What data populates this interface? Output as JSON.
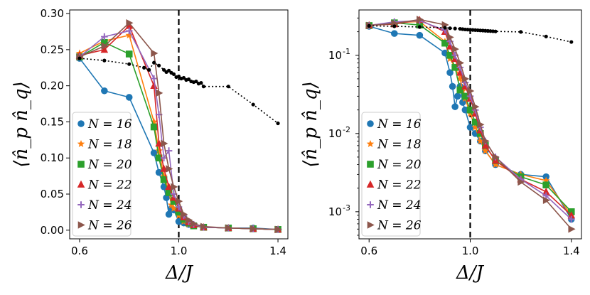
{
  "chart_data": [
    {
      "type": "line",
      "title": "",
      "xlabel": "Δ/J",
      "ylabel": "⟨n̂_p n̂_q⟩",
      "yscale": "linear",
      "xlim": [
        0.56,
        1.44
      ],
      "ylim": [
        -0.012,
        0.305
      ],
      "xticks": [
        0.6,
        1.0,
        1.4
      ],
      "xtick_labels": [
        "0.6",
        "1.0",
        "1.4"
      ],
      "yticks": [
        0.0,
        0.05,
        0.1,
        0.15,
        0.2,
        0.25,
        0.3
      ],
      "ytick_labels": [
        "0.00",
        "0.05",
        "0.10",
        "0.15",
        "0.20",
        "0.25",
        "0.30"
      ],
      "vline": 1.0,
      "legend": {
        "placement": "lower-left",
        "entries": [
          "N = 16",
          "N = 18",
          "N = 20",
          "N = 22",
          "N = 24",
          "N = 26"
        ]
      },
      "series": [
        {
          "name": "N = 16",
          "color": "#1f77b4",
          "marker": "circle",
          "x": [
            0.6,
            0.7,
            0.8,
            0.9,
            0.92,
            0.94,
            0.95,
            0.96,
            0.97,
            0.98,
            1.0,
            1.02,
            1.04,
            1.06,
            1.1,
            1.2,
            1.3,
            1.4
          ],
          "y": [
            0.238,
            0.193,
            0.184,
            0.107,
            0.08,
            0.06,
            0.045,
            0.022,
            0.03,
            0.028,
            0.012,
            0.01,
            0.008,
            0.006,
            0.004,
            0.003,
            0.003,
            0.001
          ]
        },
        {
          "name": "N = 18",
          "color": "#ff7f0e",
          "marker": "star",
          "x": [
            0.6,
            0.7,
            0.8,
            0.9,
            0.92,
            0.94,
            0.96,
            0.97,
            0.98,
            1.0,
            1.02,
            1.04,
            1.06,
            1.1,
            1.2,
            1.3,
            1.4
          ],
          "y": [
            0.245,
            0.262,
            0.27,
            0.15,
            0.11,
            0.075,
            0.055,
            0.035,
            0.03,
            0.02,
            0.012,
            0.008,
            0.006,
            0.004,
            0.003,
            0.002,
            0.001
          ]
        },
        {
          "name": "N = 20",
          "color": "#2ca02c",
          "marker": "square",
          "x": [
            0.6,
            0.7,
            0.8,
            0.9,
            0.92,
            0.94,
            0.96,
            0.98,
            1.0,
            1.02,
            1.04,
            1.06,
            1.1,
            1.2,
            1.3,
            1.4
          ],
          "y": [
            0.24,
            0.26,
            0.244,
            0.143,
            0.1,
            0.07,
            0.052,
            0.04,
            0.025,
            0.015,
            0.01,
            0.006,
            0.004,
            0.003,
            0.002,
            0.001
          ]
        },
        {
          "name": "N = 22",
          "color": "#d62728",
          "marker": "triangle-up",
          "x": [
            0.6,
            0.7,
            0.8,
            0.9,
            0.92,
            0.94,
            0.96,
            0.98,
            1.0,
            1.02,
            1.04,
            1.06,
            1.1,
            1.2,
            1.3,
            1.4
          ],
          "y": [
            0.242,
            0.25,
            0.283,
            0.2,
            0.12,
            0.085,
            0.06,
            0.045,
            0.03,
            0.018,
            0.011,
            0.007,
            0.004,
            0.003,
            0.002,
            0.001
          ]
        },
        {
          "name": "N = 24",
          "color": "#9467bd",
          "marker": "plus",
          "x": [
            0.6,
            0.7,
            0.8,
            0.9,
            0.92,
            0.94,
            0.96,
            0.98,
            1.0,
            1.02,
            1.04,
            1.06,
            1.1,
            1.2,
            1.3,
            1.4
          ],
          "y": [
            0.24,
            0.268,
            0.276,
            0.21,
            0.16,
            0.1,
            0.11,
            0.05,
            0.032,
            0.02,
            0.012,
            0.008,
            0.004,
            0.003,
            0.002,
            0.001
          ]
        },
        {
          "name": "N = 26",
          "color": "#8c564b",
          "marker": "triangle-right",
          "x": [
            0.6,
            0.7,
            0.8,
            0.9,
            0.92,
            0.94,
            0.96,
            0.98,
            1.0,
            1.02,
            1.04,
            1.06,
            1.1,
            1.2,
            1.3,
            1.4
          ],
          "y": [
            0.24,
            0.255,
            0.287,
            0.245,
            0.19,
            0.12,
            0.085,
            0.06,
            0.04,
            0.022,
            0.014,
            0.009,
            0.005,
            0.003,
            0.002,
            0.001
          ]
        },
        {
          "name": "reference",
          "color": "#000000",
          "marker": "dot",
          "dotted": true,
          "x": [
            0.6,
            0.7,
            0.8,
            0.86,
            0.88,
            0.9,
            0.92,
            0.94,
            0.95,
            0.96,
            0.97,
            0.98,
            0.99,
            1.0,
            1.01,
            1.02,
            1.03,
            1.04,
            1.05,
            1.06,
            1.07,
            1.08,
            1.09,
            1.1,
            1.2,
            1.3,
            1.4
          ],
          "y": [
            0.238,
            0.235,
            0.23,
            0.225,
            0.222,
            0.232,
            0.228,
            0.222,
            0.219,
            0.221,
            0.218,
            0.216,
            0.212,
            0.213,
            0.21,
            0.211,
            0.208,
            0.209,
            0.206,
            0.205,
            0.206,
            0.203,
            0.204,
            0.199,
            0.199,
            0.174,
            0.148
          ]
        }
      ]
    },
    {
      "type": "line",
      "title": "",
      "xlabel": "Δ/J",
      "ylabel": "⟨n̂_p n̂_q⟩",
      "yscale": "log",
      "xlim": [
        0.56,
        1.44
      ],
      "ylim": [
        0.00045,
        0.38
      ],
      "xticks": [
        0.6,
        1.0,
        1.4
      ],
      "xtick_labels": [
        "0.6",
        "1.0",
        "1.4"
      ],
      "yticks": [
        0.001,
        0.01,
        0.1
      ],
      "ytick_labels": [
        "10",
        "10",
        "10"
      ],
      "ytick_exponents": [
        "-3",
        "-2",
        "-1"
      ],
      "vline": 1.0,
      "legend": {
        "placement": "lower-left",
        "entries": [
          "N = 16",
          "N = 18",
          "N = 20",
          "N = 22",
          "N = 24",
          "N = 26"
        ]
      },
      "series": [
        {
          "name": "N = 16",
          "color": "#1f77b4",
          "marker": "circle",
          "x": [
            0.6,
            0.7,
            0.8,
            0.9,
            0.92,
            0.93,
            0.94,
            0.95,
            0.96,
            0.97,
            0.98,
            1.0,
            1.02,
            1.04,
            1.06,
            1.1,
            1.2,
            1.3,
            1.4
          ],
          "y": [
            0.235,
            0.19,
            0.18,
            0.107,
            0.06,
            0.04,
            0.022,
            0.03,
            0.04,
            0.025,
            0.02,
            0.012,
            0.01,
            0.008,
            0.006,
            0.004,
            0.003,
            0.0028,
            0.0008
          ]
        },
        {
          "name": "N = 18",
          "color": "#ff7f0e",
          "marker": "star",
          "x": [
            0.6,
            0.7,
            0.8,
            0.9,
            0.92,
            0.94,
            0.96,
            0.97,
            0.98,
            1.0,
            1.02,
            1.04,
            1.06,
            1.1,
            1.2,
            1.3,
            1.4
          ],
          "y": [
            0.243,
            0.262,
            0.27,
            0.15,
            0.09,
            0.07,
            0.05,
            0.035,
            0.028,
            0.018,
            0.012,
            0.008,
            0.006,
            0.004,
            0.003,
            0.0025,
            0.0009
          ]
        },
        {
          "name": "N = 20",
          "color": "#2ca02c",
          "marker": "square",
          "x": [
            0.6,
            0.7,
            0.8,
            0.9,
            0.92,
            0.94,
            0.96,
            0.98,
            1.0,
            1.02,
            1.04,
            1.06,
            1.1,
            1.2,
            1.3,
            1.4
          ],
          "y": [
            0.24,
            0.26,
            0.244,
            0.143,
            0.1,
            0.07,
            0.036,
            0.03,
            0.02,
            0.014,
            0.01,
            0.007,
            0.0045,
            0.0028,
            0.0022,
            0.001
          ]
        },
        {
          "name": "N = 22",
          "color": "#d62728",
          "marker": "triangle-up",
          "x": [
            0.6,
            0.7,
            0.8,
            0.9,
            0.92,
            0.94,
            0.96,
            0.98,
            1.0,
            1.02,
            1.04,
            1.06,
            1.1,
            1.2,
            1.3,
            1.4
          ],
          "y": [
            0.242,
            0.25,
            0.283,
            0.2,
            0.13,
            0.09,
            0.06,
            0.04,
            0.028,
            0.018,
            0.011,
            0.007,
            0.0045,
            0.0026,
            0.0018,
            0.0009
          ]
        },
        {
          "name": "N = 24",
          "color": "#9467bd",
          "marker": "plus",
          "x": [
            0.6,
            0.7,
            0.8,
            0.9,
            0.92,
            0.94,
            0.96,
            0.98,
            1.0,
            1.02,
            1.04,
            1.06,
            1.1,
            1.2,
            1.3,
            1.4
          ],
          "y": [
            0.24,
            0.268,
            0.276,
            0.21,
            0.15,
            0.1,
            0.07,
            0.045,
            0.03,
            0.02,
            0.012,
            0.008,
            0.005,
            0.0026,
            0.0016,
            0.0008
          ]
        },
        {
          "name": "N = 26",
          "color": "#8c564b",
          "marker": "triangle-right",
          "x": [
            0.6,
            0.7,
            0.8,
            0.9,
            0.92,
            0.94,
            0.96,
            0.98,
            1.0,
            1.02,
            1.04,
            1.06,
            1.1,
            1.2,
            1.3,
            1.4
          ],
          "y": [
            0.24,
            0.255,
            0.287,
            0.245,
            0.17,
            0.12,
            0.08,
            0.05,
            0.035,
            0.022,
            0.013,
            0.008,
            0.005,
            0.0024,
            0.0014,
            0.0006
          ]
        },
        {
          "name": "reference",
          "color": "#000000",
          "marker": "dot",
          "dotted": true,
          "x": [
            0.6,
            0.7,
            0.8,
            0.9,
            0.92,
            0.94,
            0.96,
            0.97,
            0.98,
            0.99,
            1.0,
            1.01,
            1.02,
            1.03,
            1.04,
            1.05,
            1.06,
            1.07,
            1.08,
            1.09,
            1.1,
            1.2,
            1.3,
            1.4
          ],
          "y": [
            0.238,
            0.235,
            0.23,
            0.225,
            0.222,
            0.22,
            0.218,
            0.216,
            0.214,
            0.213,
            0.212,
            0.211,
            0.21,
            0.209,
            0.208,
            0.207,
            0.206,
            0.205,
            0.204,
            0.203,
            0.202,
            0.199,
            0.174,
            0.148
          ]
        }
      ]
    }
  ]
}
